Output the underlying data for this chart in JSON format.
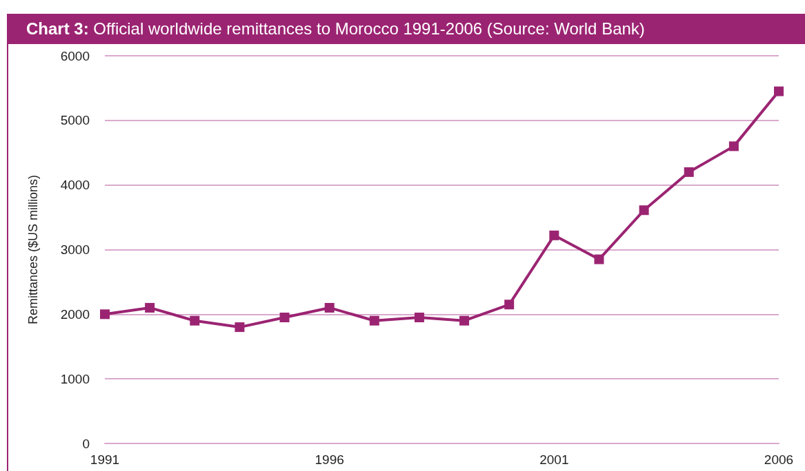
{
  "chart_data": {
    "type": "line",
    "title": "Chart 3: Official worldwide remittances to Morocco 1991-2006 (Source: World Bank)",
    "ylabel": "Remittances ($US millions)",
    "categories": [
      "1991",
      null,
      null,
      null,
      null,
      "1996",
      null,
      null,
      null,
      null,
      "2001",
      null,
      null,
      null,
      null,
      "2006"
    ],
    "series": [
      {
        "color": "#9b2472",
        "values": [
          2000,
          2100,
          1900,
          1800,
          1950,
          2100,
          1900,
          1950,
          1900,
          2150,
          3220,
          2850,
          3610,
          4200,
          4600,
          5450
        ]
      }
    ],
    "ylim": [
      0,
      6000
    ],
    "yticks": [
      0,
      1000,
      2000,
      3000,
      4000,
      5000,
      6000
    ],
    "grid": "y",
    "marker": "square",
    "line_style": "solid"
  }
}
